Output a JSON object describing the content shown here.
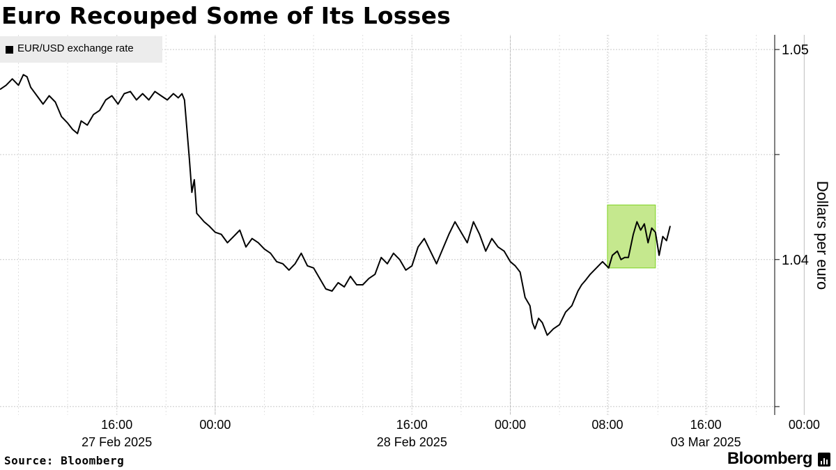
{
  "title": "Euro Recouped Some of Its Losses",
  "source": "Source: Bloomberg",
  "brand": "Bloomberg",
  "colors": {
    "line": "#000000",
    "highlight_fill": "#c5e88e",
    "highlight_stroke": "#7ed321",
    "grid": "#c8c8c8",
    "legend_bg": "#ececec"
  },
  "chart_data": {
    "type": "line",
    "title": "Euro Recouped Some of Its Losses",
    "ylabel": "Dollars per euro",
    "xlabel": "",
    "ylim": [
      1.0326,
      1.0507
    ],
    "y_ticks": [
      1.04,
      1.05
    ],
    "y_tick_labels": [
      "1.04",
      "1.05"
    ],
    "x_unit": "hours since 27 Feb 2025 00:00",
    "xlim": [
      6.5,
      69.5
    ],
    "x_ticks": [
      {
        "x": 16,
        "time": "16:00",
        "date": "27 Feb 2025"
      },
      {
        "x": 24,
        "time": "00:00",
        "date": ""
      },
      {
        "x": 40,
        "time": "16:00",
        "date": "28 Feb 2025"
      },
      {
        "x": 48,
        "time": "00:00",
        "date": ""
      },
      {
        "x": 55.9,
        "time": "08:00",
        "date": ""
      },
      {
        "x": 63.9,
        "time": "16:00",
        "date": "03 Mar 2025"
      },
      {
        "x": 71.9,
        "time": "00:00",
        "date": ""
      }
    ],
    "grid": true,
    "legend": "top-left",
    "series": [
      {
        "name": "EUR/USD exchange rate",
        "x": [
          6.5,
          7.0,
          7.5,
          8.0,
          8.4,
          8.7,
          9.0,
          9.5,
          10.0,
          10.5,
          11.0,
          11.5,
          12.0,
          12.4,
          12.8,
          13.1,
          13.6,
          14.1,
          14.6,
          15.1,
          15.6,
          16.1,
          16.6,
          17.1,
          17.6,
          18.1,
          18.6,
          19.1,
          19.6,
          20.1,
          20.6,
          21.0,
          21.3,
          21.5,
          21.7,
          21.9,
          22.1,
          22.3,
          22.5,
          22.8,
          23.1,
          23.5,
          24.0,
          24.5,
          25.0,
          25.5,
          26.0,
          26.5,
          27.0,
          27.5,
          28.0,
          28.5,
          29.0,
          29.5,
          30.0,
          30.5,
          31.0,
          31.5,
          32.0,
          32.5,
          33.0,
          33.5,
          34.0,
          34.5,
          35.0,
          35.5,
          36.0,
          36.5,
          37.0,
          37.5,
          38.0,
          38.5,
          39.0,
          39.5,
          40.0,
          40.5,
          41.0,
          41.5,
          42.0,
          42.5,
          43.0,
          43.5,
          44.0,
          44.5,
          45.0,
          45.5,
          46.0,
          46.5,
          47.0,
          47.5,
          48.0,
          48.4,
          48.8,
          49.2,
          49.6,
          49.8,
          50.0,
          50.3,
          50.6,
          51.0,
          51.5,
          52.0,
          52.5,
          53.0,
          53.5,
          53.8,
          54.1,
          54.5,
          55.0,
          55.5,
          56.0,
          56.3,
          56.7,
          57.0,
          57.3,
          57.6,
          58.0,
          58.3,
          58.6,
          58.9,
          59.2,
          59.5,
          59.8,
          60.1,
          60.4,
          60.7,
          61.0
        ],
        "values": [
          1.0481,
          1.0483,
          1.0486,
          1.0483,
          1.0488,
          1.0487,
          1.0482,
          1.0478,
          1.0474,
          1.0478,
          1.0475,
          1.0468,
          1.0465,
          1.0462,
          1.046,
          1.0466,
          1.0464,
          1.0469,
          1.0471,
          1.0476,
          1.0478,
          1.0474,
          1.0479,
          1.048,
          1.0476,
          1.0479,
          1.0476,
          1.048,
          1.0478,
          1.0476,
          1.0479,
          1.0477,
          1.0479,
          1.0476,
          1.0462,
          1.0448,
          1.0432,
          1.0438,
          1.0422,
          1.042,
          1.0418,
          1.0416,
          1.0413,
          1.0412,
          1.0408,
          1.0411,
          1.0414,
          1.0406,
          1.041,
          1.0408,
          1.0405,
          1.0403,
          1.0399,
          1.0398,
          1.0395,
          1.0398,
          1.0403,
          1.0397,
          1.0396,
          1.0391,
          1.0386,
          1.0385,
          1.0389,
          1.0387,
          1.0392,
          1.0388,
          1.0388,
          1.0391,
          1.0393,
          1.0401,
          1.0398,
          1.0403,
          1.04,
          1.0395,
          1.0397,
          1.0406,
          1.041,
          1.0404,
          1.0398,
          1.0405,
          1.0412,
          1.0418,
          1.0413,
          1.0408,
          1.0418,
          1.0412,
          1.0404,
          1.041,
          1.0406,
          1.0404,
          1.0399,
          1.0397,
          1.0394,
          1.0382,
          1.0378,
          1.037,
          1.0367,
          1.0372,
          1.037,
          1.0364,
          1.0367,
          1.0369,
          1.0375,
          1.0378,
          1.0385,
          1.0388,
          1.039,
          1.0393,
          1.0396,
          1.0399,
          1.0396,
          1.0402,
          1.0404,
          1.04,
          1.0401,
          1.0401,
          1.0412,
          1.0418,
          1.0414,
          1.0417,
          1.0408,
          1.0415,
          1.0413,
          1.0402,
          1.0411,
          1.0409,
          1.0416
        ]
      }
    ],
    "highlight": {
      "x0": 55.9,
      "x1": 59.8,
      "y0": 1.0396,
      "y1": 1.0426
    }
  }
}
